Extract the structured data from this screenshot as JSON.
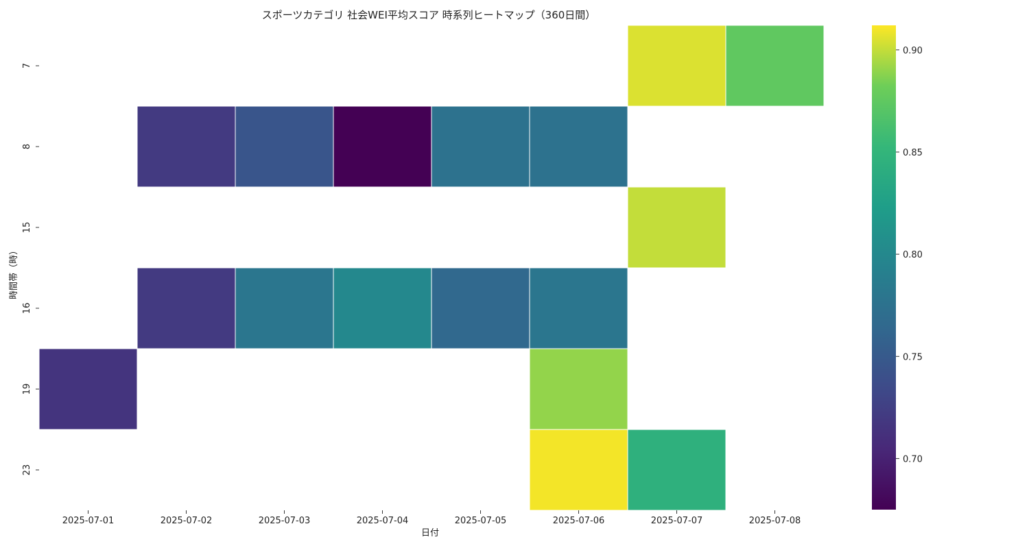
{
  "chart_data": {
    "type": "heatmap",
    "title": "スポーツカテゴリ 社会WEI平均スコア 時系列ヒートマップ（360日間）",
    "xlabel": "日付",
    "ylabel": "時間帯（時）",
    "x": [
      "2025-07-01",
      "2025-07-02",
      "2025-07-03",
      "2025-07-04",
      "2025-07-05",
      "2025-07-06",
      "2025-07-07",
      "2025-07-08"
    ],
    "y": [
      "7",
      "8",
      "15",
      "16",
      "19",
      "23"
    ],
    "values": [
      [
        null,
        null,
        null,
        null,
        null,
        null,
        0.905,
        0.875
      ],
      [
        null,
        0.72,
        0.745,
        0.675,
        0.775,
        0.775,
        null,
        null
      ],
      [
        null,
        null,
        null,
        null,
        null,
        null,
        0.9,
        null
      ],
      [
        null,
        0.72,
        0.78,
        0.8,
        0.765,
        0.78,
        null,
        null
      ],
      [
        0.715,
        null,
        null,
        null,
        null,
        0.89,
        null,
        null
      ],
      [
        null,
        null,
        null,
        null,
        null,
        0.91,
        0.845,
        null
      ]
    ],
    "colorscale": "viridis",
    "vmin": 0.675,
    "vmax": 0.912,
    "colorbar_ticks": [
      "0.70",
      "0.75",
      "0.80",
      "0.85",
      "0.90"
    ],
    "colorbar_tick_values": [
      0.7,
      0.75,
      0.8,
      0.85,
      0.9
    ],
    "grid": false,
    "legend": "colorbar right"
  }
}
